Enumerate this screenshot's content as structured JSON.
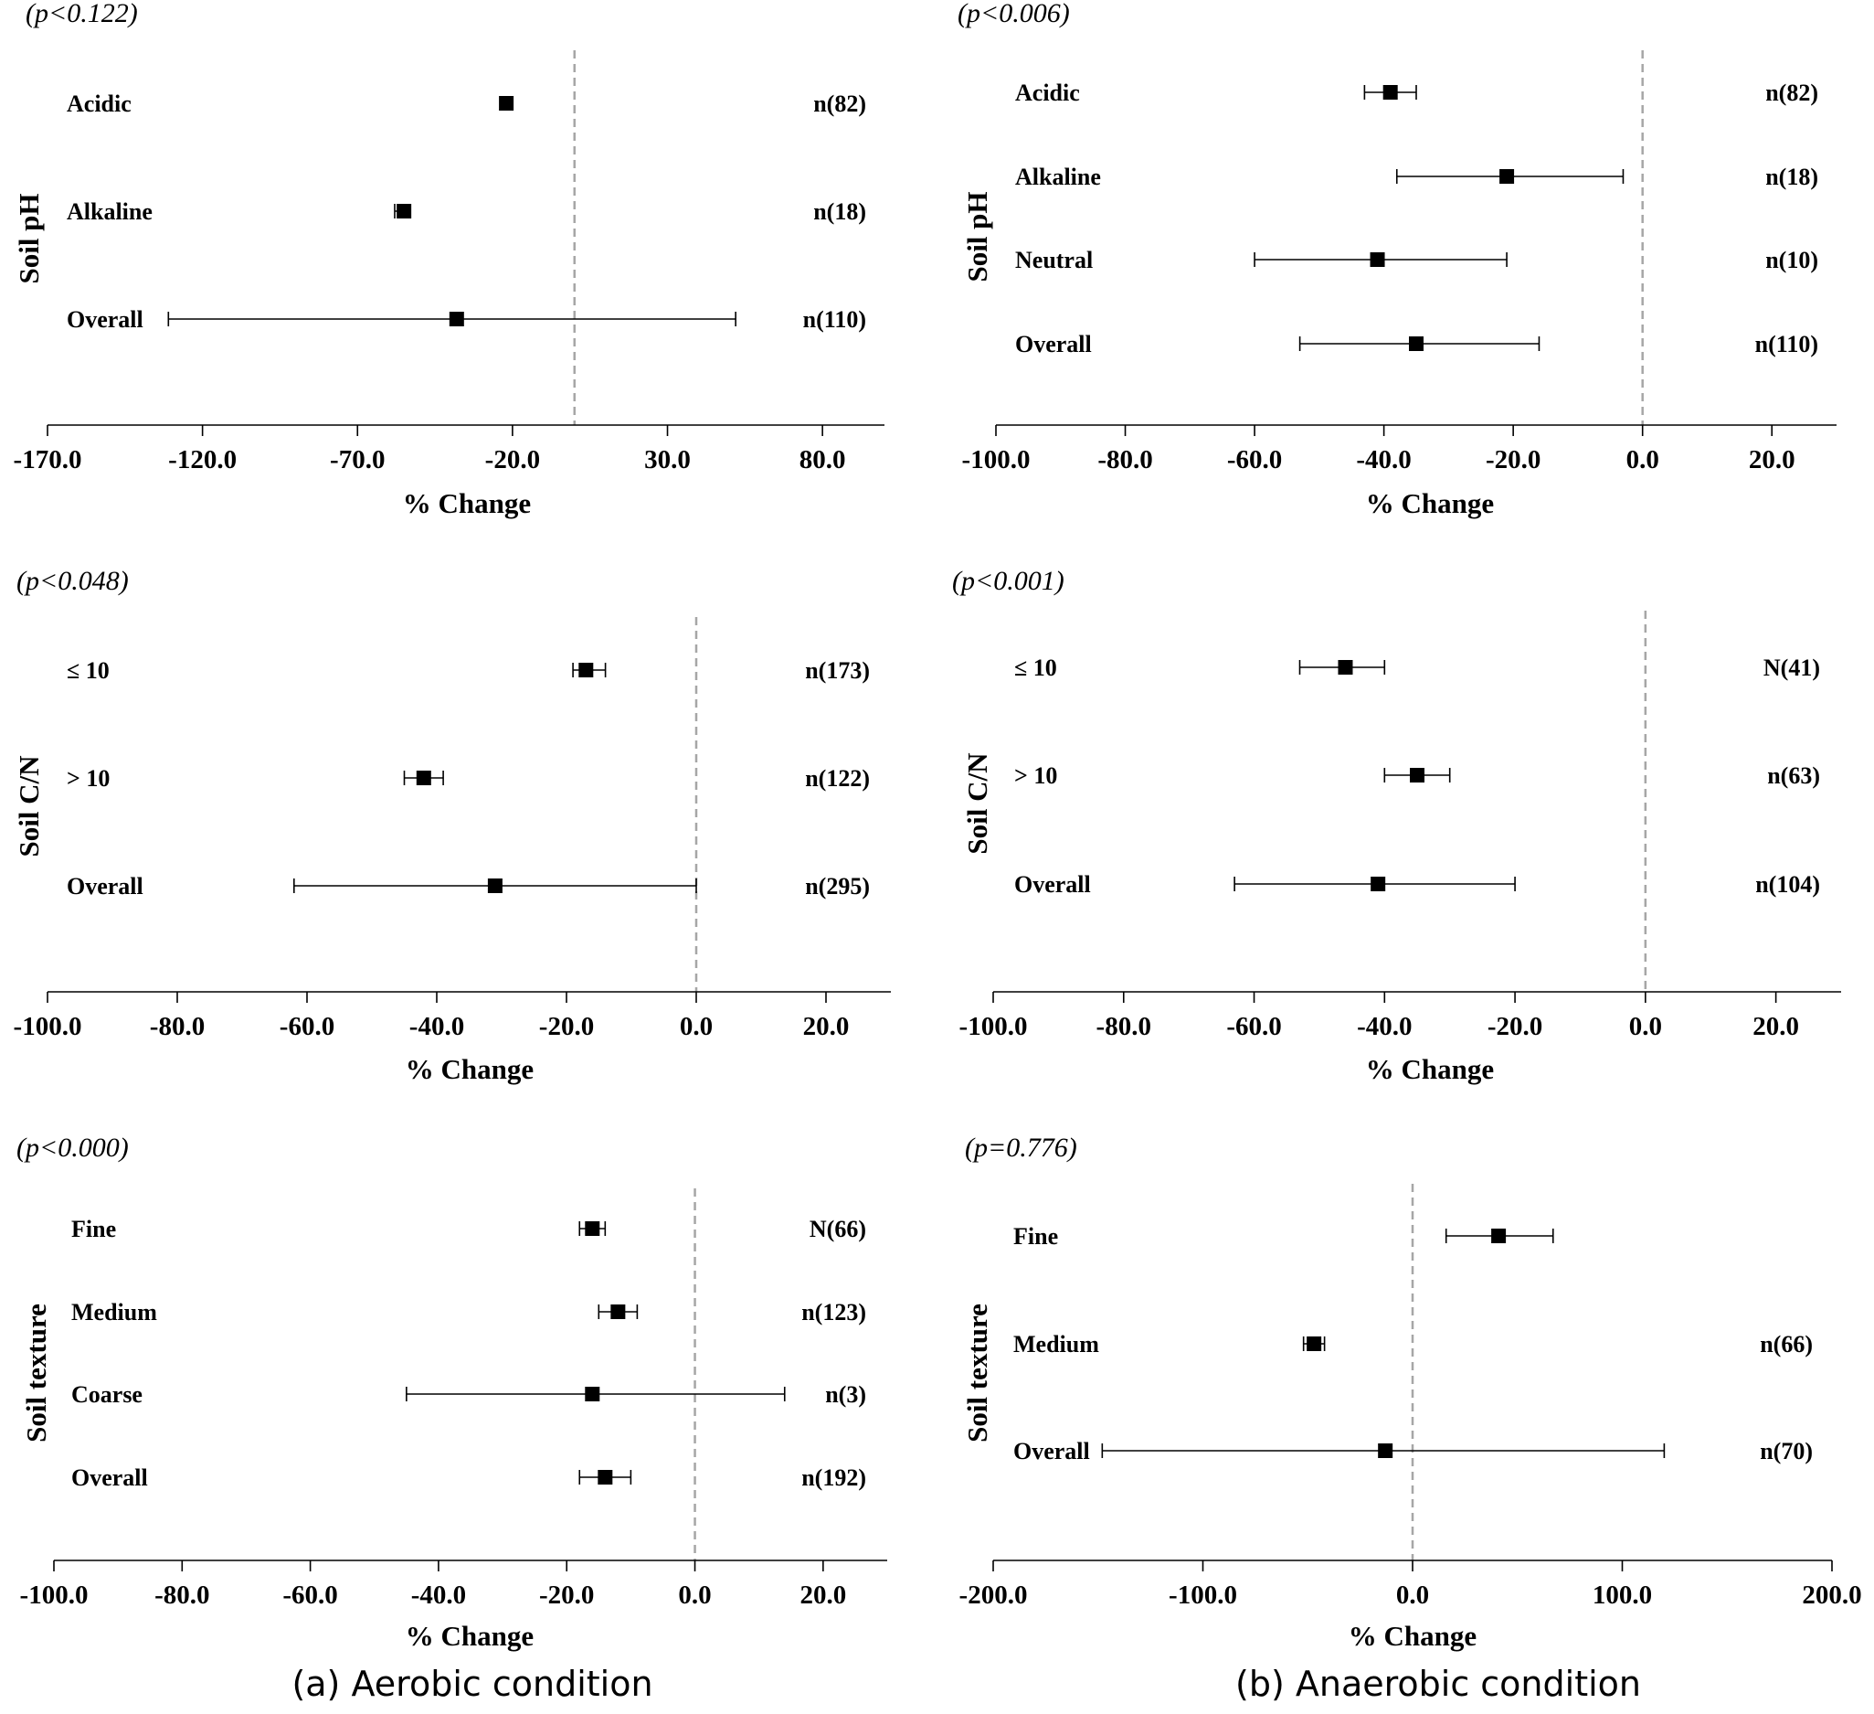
{
  "figure": {
    "caption_left": "(a) Aerobic condition",
    "caption_right": "(b) Anaerobic condition"
  },
  "chart_data": [
    {
      "id": "aerobic-ph",
      "type": "forest",
      "p_label": "(p<0.122)",
      "ylabel": "Soil pH",
      "xlabel": "%  Change",
      "xlim": [
        -170,
        100
      ],
      "ticks": [
        -170.0,
        -120.0,
        -70.0,
        -20.0,
        30.0,
        80.0
      ],
      "reference_line": 0,
      "rows": [
        {
          "label": "Acidic",
          "n": "n(82)",
          "mean": -22,
          "lo": -23,
          "hi": -21
        },
        {
          "label": "Alkaline",
          "n": "n(18)",
          "mean": -55,
          "lo": -58,
          "hi": -53
        },
        {
          "label": "Overall",
          "n": "n(110)",
          "mean": -38,
          "lo": -131,
          "hi": 52
        }
      ]
    },
    {
      "id": "anaerobic-ph",
      "type": "forest",
      "p_label": "(p<0.006)",
      "ylabel": "Soil pH",
      "xlabel": "%  Change",
      "xlim": [
        -100,
        30
      ],
      "ticks": [
        -100.0,
        -80.0,
        -60.0,
        -40.0,
        -20.0,
        0.0,
        20.0
      ],
      "reference_line": 0,
      "rows": [
        {
          "label": "Acidic",
          "n": "n(82)",
          "mean": -39,
          "lo": -43,
          "hi": -35
        },
        {
          "label": "Alkaline",
          "n": "n(18)",
          "mean": -21,
          "lo": -38,
          "hi": -3
        },
        {
          "label": "Neutral",
          "n": "n(10)",
          "mean": -41,
          "lo": -60,
          "hi": -21
        },
        {
          "label": "Overall",
          "n": "n(110)",
          "mean": -35,
          "lo": -53,
          "hi": -16
        }
      ]
    },
    {
      "id": "aerobic-cn",
      "type": "forest",
      "p_label": "(p<0.048)",
      "ylabel": "Soil C/N",
      "xlabel": "%  Change",
      "xlim": [
        -100,
        30
      ],
      "ticks": [
        -100.0,
        -80.0,
        -60.0,
        -40.0,
        -20.0,
        0.0,
        20.0
      ],
      "reference_line": 0,
      "rows": [
        {
          "label": "≤ 10",
          "n": "n(173)",
          "mean": -17,
          "lo": -19,
          "hi": -14
        },
        {
          "label": "> 10",
          "n": "n(122)",
          "mean": -42,
          "lo": -45,
          "hi": -39
        },
        {
          "label": "Overall",
          "n": "n(295)",
          "mean": -31,
          "lo": -62,
          "hi": 0
        }
      ]
    },
    {
      "id": "anaerobic-cn",
      "type": "forest",
      "p_label": "(p<0.001)",
      "ylabel": "Soil C/N",
      "xlabel": "%  Change",
      "xlim": [
        -100,
        30
      ],
      "ticks": [
        -100.0,
        -80.0,
        -60.0,
        -40.0,
        -20.0,
        0.0,
        20.0
      ],
      "reference_line": 0,
      "rows": [
        {
          "label": "≤ 10",
          "n": "N(41)",
          "mean": -46,
          "lo": -53,
          "hi": -40
        },
        {
          "label": "> 10",
          "n": "n(63)",
          "mean": -35,
          "lo": -40,
          "hi": -30
        },
        {
          "label": "Overall",
          "n": "n(104)",
          "mean": -41,
          "lo": -63,
          "hi": -20
        }
      ]
    },
    {
      "id": "aerobic-texture",
      "type": "forest",
      "p_label": "(p<0.000)",
      "ylabel": "Soil texture",
      "xlabel": "%  Change",
      "xlim": [
        -100,
        30
      ],
      "ticks": [
        -100.0,
        -80.0,
        -60.0,
        -40.0,
        -20.0,
        0.0,
        20.0
      ],
      "reference_line": 0,
      "rows": [
        {
          "label": "Fine",
          "n": "N(66)",
          "mean": -16,
          "lo": -18,
          "hi": -14
        },
        {
          "label": "Medium",
          "n": "n(123)",
          "mean": -12,
          "lo": -15,
          "hi": -9
        },
        {
          "label": "Coarse",
          "n": "n(3)",
          "mean": -16,
          "lo": -45,
          "hi": 14
        },
        {
          "label": "Overall",
          "n": "n(192)",
          "mean": -14,
          "lo": -18,
          "hi": -10
        }
      ]
    },
    {
      "id": "anaerobic-texture",
      "type": "forest",
      "p_label": "(p=0.776)",
      "ylabel": "Soil texture",
      "xlabel": "%  Change",
      "xlim": [
        -200,
        200
      ],
      "ticks": [
        -200.0,
        -100.0,
        0.0,
        100.0,
        200.0
      ],
      "reference_line": 0,
      "rows": [
        {
          "label": "Fine",
          "n": "",
          "mean": 41,
          "lo": 16,
          "hi": 67
        },
        {
          "label": "Medium",
          "n": "n(66)",
          "mean": -47,
          "lo": -52,
          "hi": -42
        },
        {
          "label": "Overall",
          "n": "n(70)",
          "mean": -13,
          "lo": -148,
          "hi": 120
        }
      ]
    }
  ]
}
